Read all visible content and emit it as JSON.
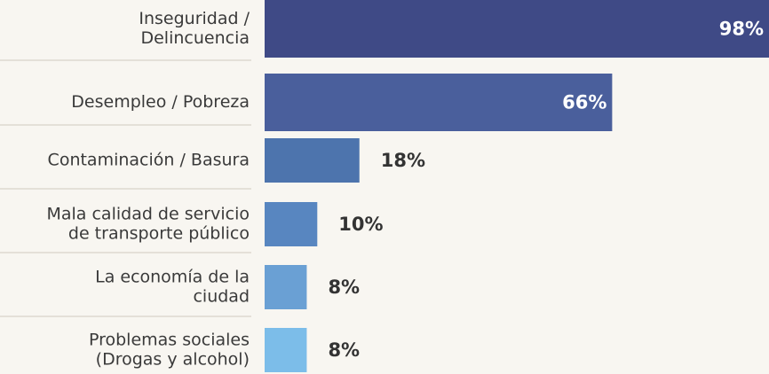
{
  "chart_data": {
    "type": "bar",
    "orientation": "horizontal",
    "categories": [
      [
        "Inseguridad /",
        "Delincuencia"
      ],
      [
        "Desempleo / Pobreza"
      ],
      [
        "Contaminación / Basura"
      ],
      [
        "Mala calidad de servicio",
        "de transporte público"
      ],
      [
        "La economía de la",
        "ciudad"
      ],
      [
        "Problemas sociales",
        "(Drogas y alcohol)"
      ]
    ],
    "values": [
      98,
      66,
      18,
      10,
      8,
      8
    ],
    "value_labels": [
      "98%",
      "66%",
      "18%",
      "10%",
      "8%",
      "8%"
    ],
    "colors": [
      "#3f4a86",
      "#4a5f9c",
      "#4d74ad",
      "#5886c0",
      "#6aa0d4",
      "#7cbde9"
    ]
  }
}
